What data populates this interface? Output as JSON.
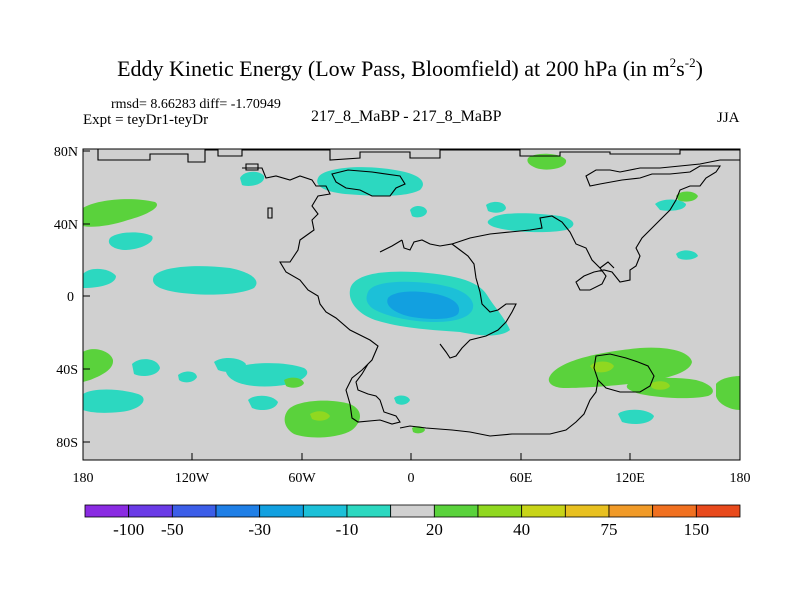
{
  "title": {
    "main": "Eddy Kinetic Energy (Low Pass, Bloomfield) at 200 hPa (in m",
    "sup1": "2",
    "mid": "s",
    "sup2": "-2",
    "end": ")"
  },
  "stats_line": "rmsd= 8.66283 diff= -1.70949",
  "expt_line": "Expt = teyDr1-teyDr",
  "center_label": "217_8_MaBP - 217_8_MaBP",
  "season": "JJA",
  "axes": {
    "lat_labels": [
      "80N",
      "40N",
      "0",
      "40S",
      "80S"
    ],
    "lon_labels": [
      "180",
      "120W",
      "60W",
      "0",
      "60E",
      "120E",
      "180"
    ]
  },
  "colorbar": {
    "colors": [
      "#8a2be2",
      "#6a3be6",
      "#3c5ee8",
      "#1f7fe6",
      "#12a0e0",
      "#1cc0d8",
      "#2cd8c0",
      "#d0d0d0",
      "#5ad23c",
      "#90d820",
      "#c8d418",
      "#e8c020",
      "#f09a28",
      "#f07020",
      "#e84a1c"
    ],
    "labels": [
      {
        "text": "-100",
        "after_box": 1
      },
      {
        "text": "-50",
        "after_box": 2
      },
      {
        "text": "-30",
        "after_box": 4
      },
      {
        "text": "-10",
        "after_box": 6
      },
      {
        "text": "20",
        "after_box": 8
      },
      {
        "text": "40",
        "after_box": 10
      },
      {
        "text": "75",
        "after_box": 12
      },
      {
        "text": "150",
        "after_box": 14
      }
    ]
  },
  "map_colors": {
    "background": "#d0d0d0",
    "land_outline": "#000000",
    "aqua": "#2cd8c0",
    "cyan": "#1cc0d8",
    "blue": "#12a0e0",
    "green": "#5ad23c",
    "lime": "#90d820"
  }
}
